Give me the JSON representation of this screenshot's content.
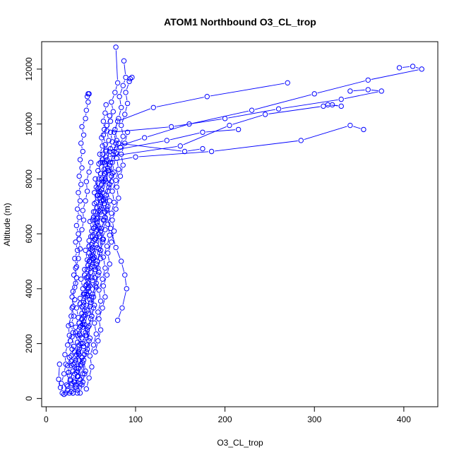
{
  "chart_data": {
    "type": "line",
    "title": "ATOM1 Northbound O3_CL_trop",
    "xlabel": "O3_CL_trop",
    "ylabel": "Altitude (m)",
    "xlim": [
      -5,
      438
    ],
    "ylim": [
      -300,
      13000
    ],
    "x_ticks": [
      0,
      100,
      200,
      300,
      400
    ],
    "y_ticks": [
      0,
      2000,
      4000,
      6000,
      8000,
      10000,
      12000
    ],
    "grid": false,
    "legend": "none",
    "series_color": "#0000ff",
    "marker": "open-circle",
    "series": [
      {
        "x": [
          22,
          24,
          27,
          25,
          28,
          26,
          29,
          27,
          30,
          28,
          31,
          29,
          32,
          30,
          33,
          31,
          34,
          32,
          35,
          33,
          36,
          34,
          37,
          35,
          38,
          36,
          39,
          37,
          40,
          38,
          41,
          39,
          42,
          40,
          44,
          45,
          47,
          46,
          48,
          47
        ],
        "y": [
          200,
          450,
          700,
          950,
          1200,
          1500,
          1800,
          2100,
          2400,
          2700,
          3000,
          3300,
          3600,
          3900,
          4200,
          4500,
          4800,
          5100,
          5400,
          5700,
          6000,
          6300,
          6600,
          6900,
          7200,
          7500,
          7800,
          8100,
          8400,
          8700,
          9000,
          9300,
          9600,
          9900,
          10200,
          10500,
          10800,
          11000,
          11100,
          11100
        ]
      },
      {
        "x": [
          30,
          33,
          35,
          34,
          37,
          36,
          39,
          38,
          41,
          40,
          43,
          42,
          45,
          44,
          47,
          46,
          49,
          48,
          51,
          50,
          53,
          52,
          55,
          54,
          57,
          56,
          59,
          58,
          61,
          60,
          63,
          62,
          65,
          64,
          66,
          67
        ],
        "y": [
          200,
          500,
          800,
          1100,
          1400,
          1700,
          2000,
          2300,
          2600,
          2900,
          3200,
          3500,
          3800,
          4100,
          4400,
          4700,
          5000,
          5300,
          5600,
          5900,
          6200,
          6500,
          6800,
          7100,
          7400,
          7700,
          8000,
          8300,
          8600,
          8900,
          9200,
          9500,
          9800,
          10100,
          10400,
          10700
        ]
      },
      {
        "x": [
          35,
          38,
          36,
          40,
          42,
          45,
          43,
          47,
          50,
          48,
          52,
          55,
          53,
          57,
          60,
          58,
          62,
          65,
          63,
          67,
          70,
          68,
          72,
          110,
          160,
          230,
          300,
          360,
          420,
          410,
          395
        ],
        "y": [
          300,
          700,
          1100,
          1500,
          1900,
          2300,
          2700,
          3100,
          3500,
          3900,
          4300,
          4700,
          5100,
          5500,
          5900,
          6300,
          6700,
          7100,
          7500,
          7900,
          8300,
          8700,
          9100,
          9500,
          10000,
          10500,
          11100,
          11600,
          12000,
          12100,
          12050
        ]
      },
      {
        "x": [
          28,
          31,
          34,
          32,
          36,
          39,
          37,
          41,
          44,
          42,
          46,
          49,
          47,
          51,
          54,
          52,
          56,
          59,
          57,
          61,
          64,
          62,
          66,
          69,
          67,
          71,
          74,
          72,
          140,
          200,
          260,
          330,
          375,
          360,
          340
        ],
        "y": [
          250,
          600,
          950,
          1300,
          1650,
          2000,
          2350,
          2700,
          3050,
          3400,
          3750,
          4100,
          4450,
          4800,
          5150,
          5500,
          5850,
          6200,
          6550,
          6900,
          7250,
          7600,
          7950,
          8300,
          8650,
          9000,
          9350,
          9700,
          9900,
          10200,
          10550,
          10900,
          11200,
          11250,
          11200
        ]
      },
      {
        "x": [
          33,
          36,
          39,
          37,
          41,
          44,
          42,
          46,
          49,
          47,
          51,
          54,
          52,
          56,
          59,
          57,
          61,
          64,
          62,
          66,
          69,
          67,
          150,
          205,
          245,
          310,
          320,
          330,
          315
        ],
        "y": [
          400,
          800,
          1200,
          1600,
          2000,
          2400,
          2800,
          3200,
          3600,
          4000,
          4400,
          4800,
          5200,
          5600,
          6000,
          6400,
          6800,
          7200,
          7600,
          8000,
          8400,
          8800,
          9200,
          9950,
          10350,
          10650,
          10700,
          10650,
          10700
        ]
      },
      {
        "x": [
          26,
          29,
          32,
          30,
          34,
          37,
          35,
          39,
          42,
          40,
          44,
          47,
          45,
          49,
          52,
          50,
          54,
          57,
          55,
          59,
          62,
          60,
          64,
          67,
          65,
          100,
          185,
          285,
          340,
          355
        ],
        "y": [
          200,
          550,
          900,
          1250,
          1600,
          1950,
          2300,
          2650,
          3000,
          3350,
          3700,
          4050,
          4400,
          4750,
          5100,
          5450,
          5800,
          6150,
          6500,
          6850,
          7200,
          7550,
          7900,
          8250,
          8600,
          8800,
          9000,
          9400,
          9950,
          9800
        ]
      },
      {
        "x": [
          38,
          41,
          44,
          42,
          46,
          49,
          47,
          51,
          54,
          52,
          56,
          59,
          57,
          61,
          64,
          62,
          66,
          69,
          67,
          71,
          74,
          72,
          76,
          79,
          77,
          81,
          84,
          82,
          86,
          89,
          87
        ],
        "y": [
          200,
          600,
          1000,
          1400,
          1800,
          2200,
          2600,
          3000,
          3400,
          3800,
          4200,
          4600,
          5000,
          5400,
          5800,
          6200,
          6600,
          7000,
          7400,
          7800,
          8200,
          8600,
          9000,
          9400,
          9800,
          10200,
          10600,
          11000,
          11400,
          11700,
          12300
        ]
      },
      {
        "x": [
          24,
          27,
          30,
          28,
          32,
          35,
          33,
          37,
          40,
          38,
          42,
          45,
          43,
          47,
          50,
          48,
          52,
          55,
          53,
          57,
          60,
          58,
          62,
          65,
          63,
          67,
          70,
          68,
          72,
          75,
          73,
          77,
          80,
          78
        ],
        "y": [
          300,
          650,
          1000,
          1350,
          1700,
          2050,
          2400,
          2750,
          3100,
          3450,
          3800,
          4150,
          4500,
          4850,
          5200,
          5550,
          5900,
          6250,
          6600,
          6950,
          7300,
          7650,
          8000,
          8350,
          8700,
          9050,
          9400,
          9750,
          10100,
          10450,
          10800,
          11150,
          11500,
          12800
        ]
      },
      {
        "x": [
          40,
          43,
          41,
          45,
          48,
          46,
          50,
          53,
          51,
          55,
          58,
          56,
          60,
          63,
          61,
          65,
          68,
          66,
          70,
          73,
          71,
          75,
          78,
          76,
          80,
          120,
          180,
          270
        ],
        "y": [
          500,
          900,
          1300,
          1700,
          2100,
          2500,
          2900,
          3300,
          3700,
          4100,
          4500,
          4900,
          5300,
          5700,
          6100,
          6500,
          6900,
          7300,
          7700,
          8100,
          8500,
          8900,
          9300,
          9700,
          10100,
          10600,
          11000,
          11500
        ]
      },
      {
        "x": [
          20,
          23,
          26,
          24,
          28,
          31,
          29,
          33,
          36,
          34,
          38,
          41,
          39,
          43,
          46,
          44,
          48,
          51,
          49,
          53,
          56,
          54,
          58,
          61,
          59,
          63,
          66,
          64,
          68,
          71
        ],
        "y": [
          150,
          500,
          850,
          1200,
          1550,
          1900,
          2250,
          2600,
          2950,
          3300,
          3650,
          4000,
          4350,
          4700,
          5050,
          5400,
          5750,
          6100,
          6450,
          6800,
          7150,
          7500,
          7850,
          8200,
          8550,
          8900,
          9250,
          9600,
          9950,
          10300
        ]
      },
      {
        "x": [
          45,
          48,
          51,
          49,
          53,
          56,
          54,
          58,
          61,
          59,
          63,
          66,
          64,
          68,
          71,
          69,
          73,
          76,
          74,
          78,
          81,
          79,
          83,
          86,
          84,
          88,
          91,
          89,
          93,
          96,
          94
        ],
        "y": [
          350,
          750,
          1150,
          1550,
          1950,
          2350,
          2750,
          3150,
          3550,
          3950,
          4350,
          4750,
          5150,
          5550,
          5950,
          6350,
          6750,
          7150,
          7550,
          7950,
          8350,
          8750,
          9150,
          9550,
          9950,
          10350,
          10750,
          11150,
          11550,
          11700,
          11650
        ]
      },
      {
        "x": [
          30,
          32,
          35,
          33,
          37,
          40,
          38,
          42,
          45,
          43,
          47,
          50,
          48,
          52,
          55,
          53,
          57,
          60,
          58,
          62,
          65,
          63,
          67,
          135,
          175,
          215
        ],
        "y": [
          200,
          600,
          1000,
          1400,
          1800,
          2200,
          2600,
          3000,
          3400,
          3800,
          4200,
          4600,
          5000,
          5400,
          5800,
          6200,
          6600,
          7000,
          7400,
          7800,
          8200,
          8600,
          9000,
          9400,
          9700,
          9800
        ]
      },
      {
        "x": [
          15,
          14,
          16,
          18,
          17,
          20,
          22,
          21,
          24,
          26,
          25,
          28,
          30,
          29,
          32,
          34,
          33,
          36,
          38,
          37,
          40,
          42,
          41,
          44,
          46,
          45,
          48,
          50
        ],
        "y": [
          1250,
          700,
          400,
          200,
          550,
          900,
          1250,
          1600,
          1950,
          2300,
          2650,
          3000,
          3350,
          3700,
          4050,
          4400,
          4750,
          5100,
          5450,
          5800,
          6150,
          6500,
          6850,
          7200,
          7550,
          7900,
          8250,
          8600
        ]
      },
      {
        "x": [
          35,
          38,
          41,
          39,
          43,
          46,
          44,
          48,
          51,
          49,
          53,
          56,
          54,
          58,
          61,
          59,
          63,
          66,
          64,
          68,
          71,
          69,
          73,
          76,
          74,
          78,
          81,
          155,
          175
        ],
        "y": [
          200,
          550,
          900,
          1250,
          1600,
          1950,
          2300,
          2650,
          3000,
          3350,
          3700,
          4050,
          4400,
          4750,
          5100,
          5450,
          5800,
          6150,
          6500,
          6850,
          7200,
          7550,
          7900,
          8250,
          8600,
          8950,
          9300,
          9000,
          9100
        ]
      },
      {
        "x": [
          55,
          58,
          61,
          59,
          63,
          66,
          64,
          68,
          71,
          69,
          73,
          76,
          74,
          78,
          81,
          79,
          83,
          86,
          84,
          88,
          91
        ],
        "y": [
          1700,
          2100,
          2500,
          2900,
          3300,
          3700,
          4100,
          4500,
          4900,
          5300,
          5700,
          6100,
          6500,
          6900,
          7300,
          7700,
          8100,
          8500,
          8900,
          9300,
          9700
        ]
      },
      {
        "x": [
          80,
          85,
          90,
          88,
          84,
          78,
          72,
          66,
          60,
          55
        ],
        "y": [
          2850,
          3300,
          4000,
          4500,
          5000,
          5500,
          6200,
          6800,
          7400,
          8000
        ]
      }
    ]
  }
}
